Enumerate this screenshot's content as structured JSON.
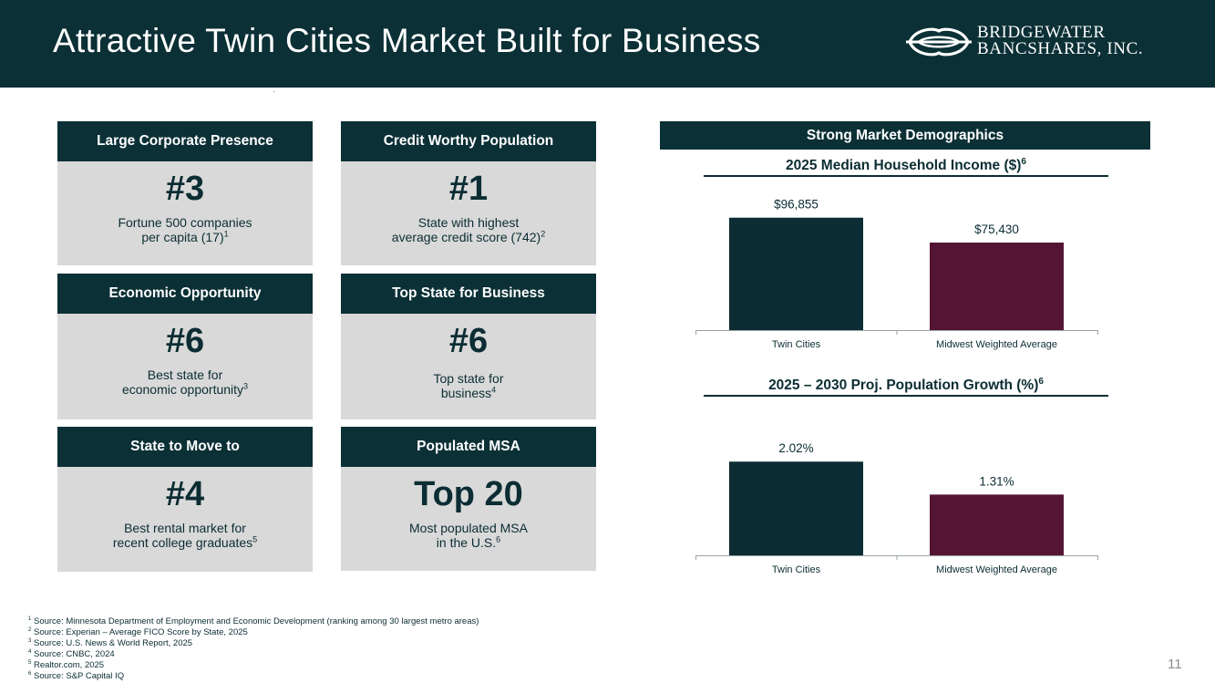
{
  "header": {
    "title": "Attractive Twin Cities Market Built for Business",
    "logo_line1": "BRIDGEWATER",
    "logo_line2": "BANCSHARES, INC."
  },
  "cards": [
    {
      "heading": "Large Corporate Presence",
      "rank": "#3",
      "desc1": "Fortune 500 companies",
      "desc2": "per capita (17)",
      "note": "1"
    },
    {
      "heading": "Credit Worthy Population",
      "rank": "#1",
      "desc1": "State with highest",
      "desc2": "average credit score (742)",
      "note": "2"
    },
    {
      "heading": "Economic Opportunity",
      "rank": "#6",
      "desc1": "Best state for",
      "desc2": "economic opportunity",
      "note": "3"
    },
    {
      "heading": "Top State for Business",
      "rank": "#6",
      "desc1": "Top state for",
      "desc2": "business",
      "note": "4"
    },
    {
      "heading": "State to Move to",
      "rank": "#4",
      "desc1": "Best rental market for",
      "desc2": "recent college graduates",
      "note": "5"
    },
    {
      "heading": "Populated MSA",
      "rank": "Top 20",
      "desc1": "Most populated MSA",
      "desc2": "in the U.S.",
      "note": "6"
    }
  ],
  "demographics": {
    "heading": "Strong Market Demographics"
  },
  "chart_data": [
    {
      "type": "bar",
      "title": "2025 Median Household Income ($)",
      "title_note": "6",
      "categories": [
        "Twin Cities",
        "Midwest Weighted Average"
      ],
      "values": [
        96855,
        75430
      ],
      "value_labels": [
        "$96,855",
        "$75,430"
      ],
      "colors": [
        "#0b2d33",
        "#541535"
      ],
      "ylim": [
        0,
        110000
      ],
      "xlabel": "",
      "ylabel": "",
      "grid": false
    },
    {
      "type": "bar",
      "title": "2025 – 2030 Proj. Population Growth (%)",
      "title_note": "6",
      "categories": [
        "Twin Cities",
        "Midwest Weighted Average"
      ],
      "values": [
        2.02,
        1.31
      ],
      "value_labels": [
        "2.02%",
        "1.31%"
      ],
      "colors": [
        "#0b2d33",
        "#541535"
      ],
      "ylim": [
        0,
        2.3
      ],
      "xlabel": "",
      "ylabel": "",
      "grid": false
    }
  ],
  "footnotes": [
    {
      "num": "1",
      "text": "Source: Minnesota Department of Employment and Economic Development (ranking among 30 largest metro areas)"
    },
    {
      "num": "2",
      "text": "Source: Experian – Average FICO Score by State, 2025"
    },
    {
      "num": "3",
      "text": "Source: U.S. News & World Report, 2025"
    },
    {
      "num": "4",
      "text": "Source: CNBC, 2024"
    },
    {
      "num": "5",
      "text": "Realtor.com, 2025"
    },
    {
      "num": "6",
      "text": "Source: S&P Capital IQ"
    }
  ],
  "page_number": "11"
}
